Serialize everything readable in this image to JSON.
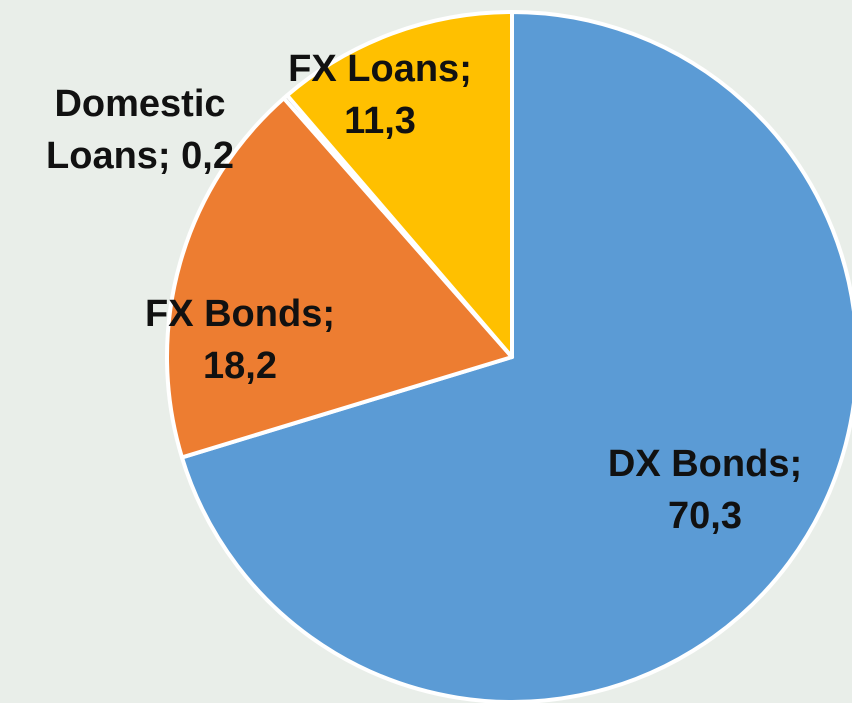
{
  "chart_data": {
    "type": "pie",
    "categories": [
      "DX Bonds",
      "FX Bonds",
      "Domestic Loans",
      "FX Loans"
    ],
    "values": [
      70.3,
      18.2,
      0.2,
      11.3
    ],
    "value_labels": [
      "70,3",
      "18,2",
      "0,2",
      "11,3"
    ],
    "label_separator": ";",
    "colors": [
      "#5b9bd5",
      "#ed7d31",
      "#a5a5a5",
      "#ffc000"
    ],
    "start_angle": 0,
    "direction": "clockwise"
  }
}
